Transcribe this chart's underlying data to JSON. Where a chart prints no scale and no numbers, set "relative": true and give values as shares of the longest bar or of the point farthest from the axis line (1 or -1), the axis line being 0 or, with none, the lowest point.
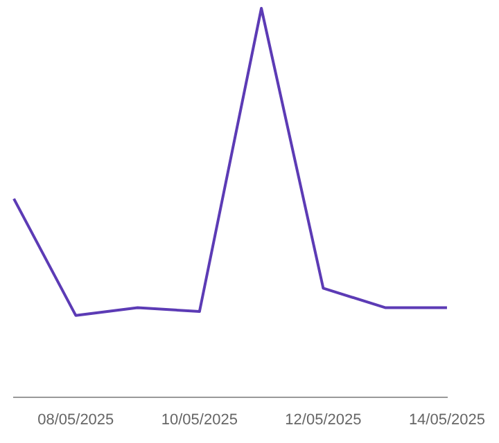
{
  "chart_data": {
    "type": "line",
    "relative": true,
    "categories": [
      null,
      "08/05/2025",
      null,
      "10/05/2025",
      null,
      "12/05/2025",
      null,
      "14/05/2025"
    ],
    "series": [
      {
        "color": "#5c3bb5",
        "values": [
          0.51,
          0.21,
          0.23,
          0.22,
          1,
          0.28,
          0.23,
          0.23
        ]
      }
    ],
    "legend": false,
    "marker": "none",
    "line_style": "solid"
  }
}
